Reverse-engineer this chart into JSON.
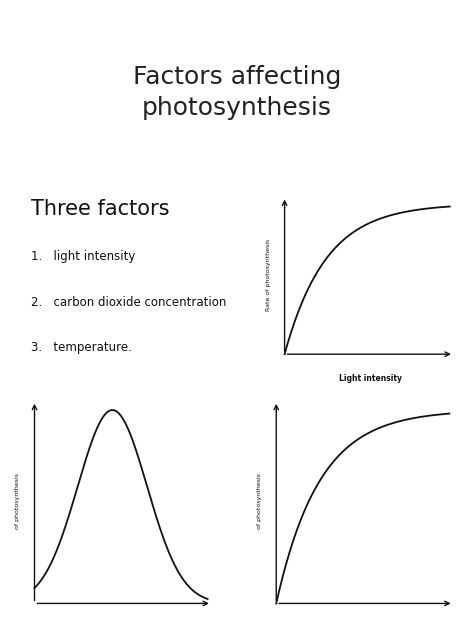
{
  "title_line1": "Factors affecting",
  "title_line2": "photosynthesis",
  "title_fontsize": 18,
  "title_color": "#222222",
  "section_title": "Three factors",
  "section_title_fontsize": 15,
  "section_title_color": "#111111",
  "list_items": [
    "light intensity",
    "carbon dioxide concentration",
    "temperature."
  ],
  "list_fontsize": 8.5,
  "list_color": "#111111",
  "bg_color": "#ffffff",
  "graph1_ylabel": "Rate of photosynthesis",
  "graph1_xlabel": "Light intensity",
  "graph2_ylabel": "of photosynthesis",
  "graph3_ylabel": "of photosynthesis",
  "axis_color": "#111111",
  "curve_color": "#111111",
  "curve_lw": 1.3
}
